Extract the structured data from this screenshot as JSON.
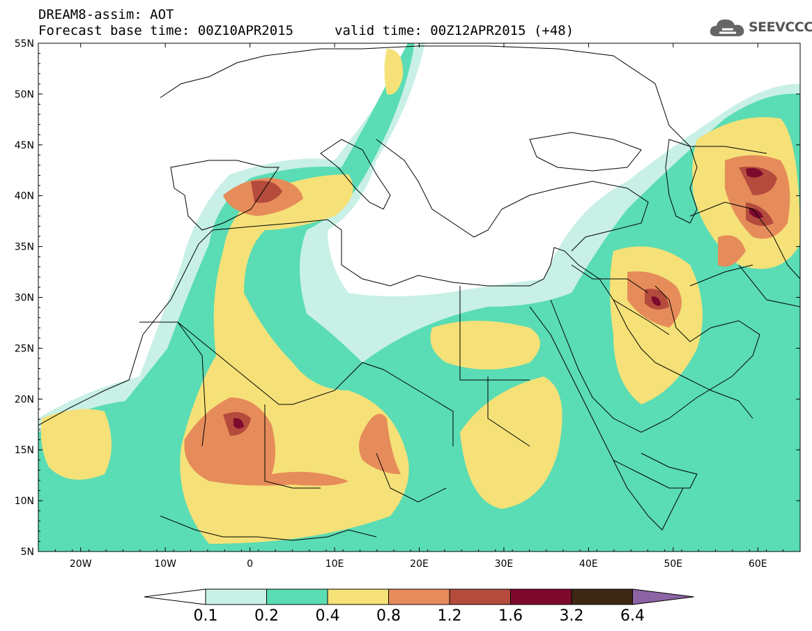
{
  "title": {
    "line1": "DREAM8-assim: AOT",
    "line2": "Forecast base time: 00Z10APR2015",
    "valid": "valid time: 00Z12APR2015 (+48)"
  },
  "logo": {
    "text": "SEEVCCC",
    "icon": "cloud-icon"
  },
  "map": {
    "lon_range": [
      -25,
      65
    ],
    "lat_range": [
      5,
      55
    ],
    "lat_labels": [
      "55N",
      "50N",
      "45N",
      "40N",
      "35N",
      "30N",
      "25N",
      "20N",
      "15N",
      "10N",
      "5N"
    ],
    "lon_labels": [
      "20W",
      "10W",
      "0",
      "10E",
      "20E",
      "30E",
      "40E",
      "50E",
      "60E"
    ]
  },
  "colorbar": {
    "labels": [
      "0.1",
      "0.2",
      "0.4",
      "0.8",
      "1.2",
      "1.6",
      "3.2",
      "6.4"
    ],
    "colors": [
      "#ffffff",
      "#c8f0e6",
      "#5adcb4",
      "#f5e178",
      "#e68c5a",
      "#b44b3c",
      "#7d0a2d",
      "#3c2814",
      "#8c64a5"
    ]
  }
}
